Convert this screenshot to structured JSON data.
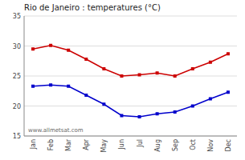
{
  "chart_data": {
    "type": "line",
    "title": "Rio de Janeiro : temperatures (°C)",
    "categories": [
      "Jan",
      "Feb",
      "Mar",
      "Apr",
      "May",
      "Jun",
      "Jul",
      "Aug",
      "Sep",
      "Oct",
      "Nov",
      "Dec"
    ],
    "series": [
      {
        "color": "#cc0000",
        "marker": "square",
        "values": [
          29.5,
          30.1,
          29.3,
          27.8,
          26.2,
          25.0,
          25.2,
          25.5,
          25.0,
          26.2,
          27.3,
          28.7
        ]
      },
      {
        "color": "#0000cc",
        "marker": "square",
        "values": [
          23.3,
          23.5,
          23.3,
          21.8,
          20.3,
          18.4,
          18.2,
          18.7,
          19.0,
          20.0,
          21.2,
          22.3
        ]
      }
    ],
    "ylim": [
      15,
      35
    ],
    "yticks": [
      15,
      20,
      25,
      30,
      35
    ],
    "grid": true,
    "annotations": [
      "www.allmetsat.com"
    ]
  }
}
